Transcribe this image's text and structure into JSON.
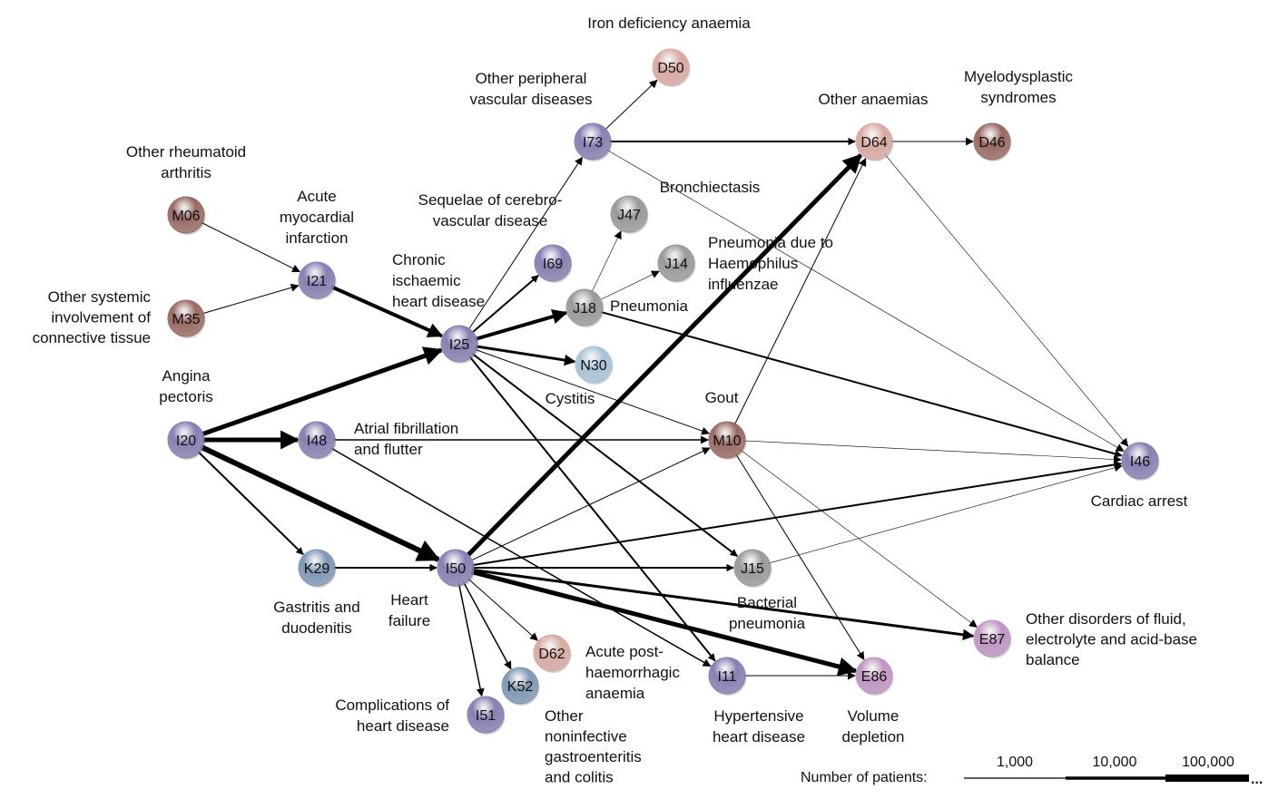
{
  "colors": {
    "purple": "#8a7fb2",
    "brown": "#9a6a63",
    "pink": "#d9aaa3",
    "gray": "#9a9a9a",
    "blue": "#7f98b5",
    "lightblue": "#a9c4d8",
    "lilac": "#c096c3",
    "edge": "#000000"
  },
  "nodes": [
    {
      "code": "M06",
      "color": "brown",
      "label": [
        "Other rheumatoid",
        "arthritis"
      ]
    },
    {
      "code": "M35",
      "color": "brown",
      "label": [
        "Other systemic",
        "involvement of",
        "connective tissue"
      ]
    },
    {
      "code": "I21",
      "color": "purple",
      "label": [
        "Acute",
        "myocardial",
        "infarction"
      ]
    },
    {
      "code": "I20",
      "color": "purple",
      "label": [
        "Angina",
        "pectoris"
      ]
    },
    {
      "code": "I25",
      "color": "purple",
      "label": [
        "Chronic",
        "ischaemic",
        "heart disease"
      ]
    },
    {
      "code": "I48",
      "color": "purple",
      "label": [
        "Atrial fibrillation",
        "and flutter"
      ]
    },
    {
      "code": "K29",
      "color": "blue",
      "label": [
        "Gastritis and",
        "duodenitis"
      ]
    },
    {
      "code": "I50",
      "color": "purple",
      "label": [
        "Heart",
        "failure"
      ]
    },
    {
      "code": "I73",
      "color": "purple",
      "label": [
        "Other peripheral",
        "vascular diseases"
      ]
    },
    {
      "code": "D50",
      "color": "pink",
      "label": [
        "Iron deficiency anaemia"
      ]
    },
    {
      "code": "I69",
      "color": "purple",
      "label": [
        "Sequelae of cerebro-",
        "vascular disease"
      ]
    },
    {
      "code": "J47",
      "color": "gray",
      "label": [
        "Bronchiectasis"
      ]
    },
    {
      "code": "J14",
      "color": "gray",
      "label": [
        "Pneumonia due to",
        "Haemophilus",
        "influenzae"
      ]
    },
    {
      "code": "J18",
      "color": "gray",
      "label": [
        "Pneumonia"
      ]
    },
    {
      "code": "N30",
      "color": "lightblue",
      "label": [
        "Cystitis"
      ]
    },
    {
      "code": "D64",
      "color": "pink",
      "label": [
        "Other anaemias"
      ]
    },
    {
      "code": "D46",
      "color": "brown",
      "label": [
        "Myelodysplastic",
        "syndromes"
      ]
    },
    {
      "code": "M10",
      "color": "brown",
      "label": [
        "Gout"
      ]
    },
    {
      "code": "I46",
      "color": "purple",
      "label": [
        "Cardiac arrest"
      ]
    },
    {
      "code": "J15",
      "color": "gray",
      "label": [
        "Bacterial",
        "pneumonia"
      ]
    },
    {
      "code": "E87",
      "color": "lilac",
      "label": [
        "Other disorders of fluid,",
        "electrolyte and acid-base",
        "balance"
      ]
    },
    {
      "code": "E86",
      "color": "lilac",
      "label": [
        "Volume",
        "depletion"
      ]
    },
    {
      "code": "I11",
      "color": "purple",
      "label": [
        "Hypertensive",
        "heart disease"
      ]
    },
    {
      "code": "D62",
      "color": "pink",
      "label": [
        "Acute post-",
        "haemorrhagic",
        "anaemia"
      ]
    },
    {
      "code": "K52",
      "color": "blue",
      "label": [
        "Other",
        "noninfective",
        "gastroenteritis",
        "and colitis"
      ]
    },
    {
      "code": "I51",
      "color": "purple",
      "label": [
        "Complications of",
        "heart disease"
      ]
    }
  ],
  "edges": [
    {
      "from": "M06",
      "to": "I21",
      "weight": 1
    },
    {
      "from": "M35",
      "to": "I21",
      "weight": 1
    },
    {
      "from": "I21",
      "to": "I25",
      "weight": 4
    },
    {
      "from": "I20",
      "to": "I25",
      "weight": 5
    },
    {
      "from": "I20",
      "to": "I48",
      "weight": 5
    },
    {
      "from": "I20",
      "to": "I50",
      "weight": 6
    },
    {
      "from": "I20",
      "to": "K29",
      "weight": 2
    },
    {
      "from": "K29",
      "to": "I50",
      "weight": 2
    },
    {
      "from": "I25",
      "to": "I73",
      "weight": 1
    },
    {
      "from": "I25",
      "to": "I69",
      "weight": 2
    },
    {
      "from": "I25",
      "to": "J18",
      "weight": 4
    },
    {
      "from": "I25",
      "to": "N30",
      "weight": 3
    },
    {
      "from": "I25",
      "to": "M10",
      "weight": 1
    },
    {
      "from": "I25",
      "to": "J15",
      "weight": 2
    },
    {
      "from": "I25",
      "to": "I11",
      "weight": 2
    },
    {
      "from": "I73",
      "to": "D50",
      "weight": 1
    },
    {
      "from": "I73",
      "to": "D64",
      "weight": 2
    },
    {
      "from": "I73",
      "to": "I46",
      "weight": 0.6
    },
    {
      "from": "D64",
      "to": "D46",
      "weight": 1
    },
    {
      "from": "D64",
      "to": "I46",
      "weight": 0.6
    },
    {
      "from": "J18",
      "to": "J47",
      "weight": 0.6
    },
    {
      "from": "J18",
      "to": "J14",
      "weight": 0.6
    },
    {
      "from": "J18",
      "to": "I46",
      "weight": 2
    },
    {
      "from": "I48",
      "to": "M10",
      "weight": 1.5
    },
    {
      "from": "I48",
      "to": "I11",
      "weight": 1.5
    },
    {
      "from": "I50",
      "to": "D64",
      "weight": 5
    },
    {
      "from": "I50",
      "to": "M10",
      "weight": 1
    },
    {
      "from": "I50",
      "to": "I46",
      "weight": 2
    },
    {
      "from": "I50",
      "to": "J15",
      "weight": 2
    },
    {
      "from": "I50",
      "to": "E87",
      "weight": 3
    },
    {
      "from": "I50",
      "to": "E86",
      "weight": 5
    },
    {
      "from": "I50",
      "to": "D62",
      "weight": 1
    },
    {
      "from": "I50",
      "to": "K52",
      "weight": 1.5
    },
    {
      "from": "I50",
      "to": "I51",
      "weight": 1.5
    },
    {
      "from": "M10",
      "to": "D64",
      "weight": 1
    },
    {
      "from": "M10",
      "to": "I46",
      "weight": 0.6
    },
    {
      "from": "M10",
      "to": "E87",
      "weight": 0.6
    },
    {
      "from": "M10",
      "to": "E86",
      "weight": 1
    },
    {
      "from": "J15",
      "to": "I46",
      "weight": 0.6
    },
    {
      "from": "I11",
      "to": "E86",
      "weight": 1
    }
  ],
  "legend": {
    "title": "Number of patients:",
    "items": [
      "1,000",
      "10,000",
      "100,000"
    ],
    "continuation": "..."
  }
}
